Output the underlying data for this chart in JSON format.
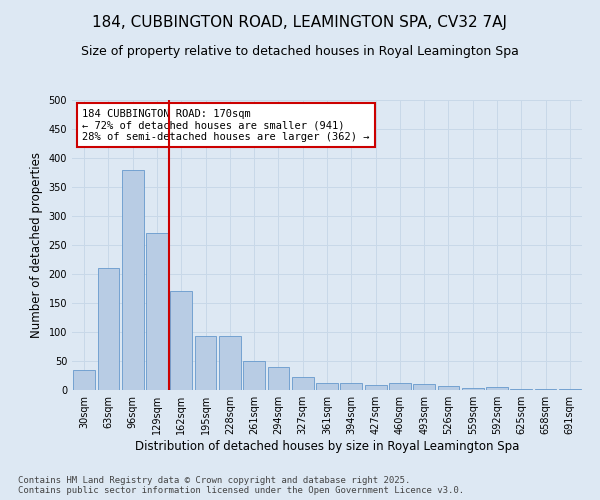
{
  "title": "184, CUBBINGTON ROAD, LEAMINGTON SPA, CV32 7AJ",
  "subtitle": "Size of property relative to detached houses in Royal Leamington Spa",
  "xlabel": "Distribution of detached houses by size in Royal Leamington Spa",
  "ylabel": "Number of detached properties",
  "categories": [
    "30sqm",
    "63sqm",
    "96sqm",
    "129sqm",
    "162sqm",
    "195sqm",
    "228sqm",
    "261sqm",
    "294sqm",
    "327sqm",
    "361sqm",
    "394sqm",
    "427sqm",
    "460sqm",
    "493sqm",
    "526sqm",
    "559sqm",
    "592sqm",
    "625sqm",
    "658sqm",
    "691sqm"
  ],
  "values": [
    35,
    210,
    380,
    270,
    170,
    93,
    93,
    50,
    40,
    23,
    12,
    12,
    8,
    12,
    10,
    7,
    3,
    5,
    1,
    1,
    2
  ],
  "bar_color": "#b8cce4",
  "bar_edge_color": "#6699cc",
  "annotation_text": "184 CUBBINGTON ROAD: 170sqm\n← 72% of detached houses are smaller (941)\n28% of semi-detached houses are larger (362) →",
  "annotation_box_color": "#ffffff",
  "annotation_box_edge": "#cc0000",
  "vline_color": "#cc0000",
  "vline_x": 3.5,
  "ylim": [
    0,
    500
  ],
  "yticks": [
    0,
    50,
    100,
    150,
    200,
    250,
    300,
    350,
    400,
    450,
    500
  ],
  "grid_color": "#c8d8e8",
  "bg_color": "#dde8f3",
  "title_fontsize": 11,
  "subtitle_fontsize": 9,
  "xlabel_fontsize": 8.5,
  "ylabel_fontsize": 8.5,
  "tick_fontsize": 7,
  "annot_fontsize": 7.5,
  "footer": "Contains HM Land Registry data © Crown copyright and database right 2025.\nContains public sector information licensed under the Open Government Licence v3.0.",
  "footer_fontsize": 6.5
}
